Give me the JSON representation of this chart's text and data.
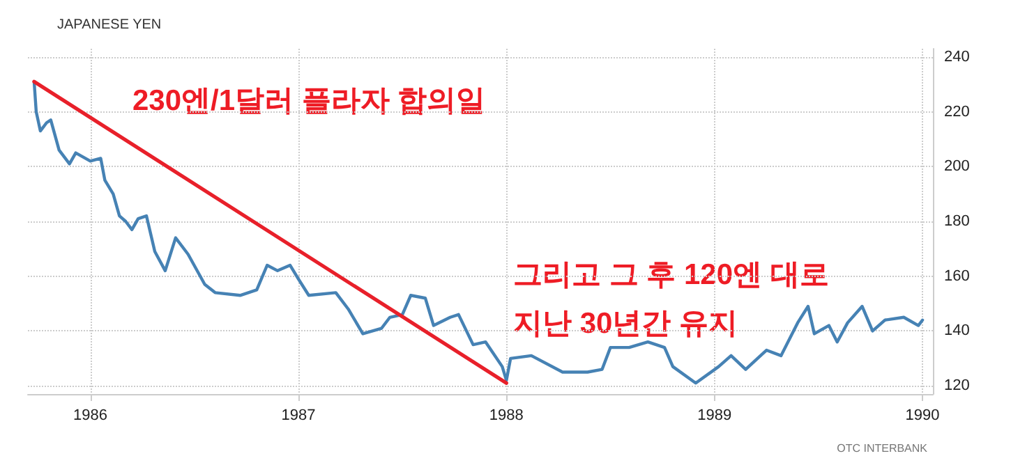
{
  "chart_data": {
    "type": "line",
    "title": "JAPANESE YEN",
    "annotations": [
      "230엔/1달러 플라자 합의일",
      "그리고 그 후 120엔 대로",
      "지난 30년간 유지",
      "OTC INTERBANK"
    ],
    "xlim": [
      1985.7,
      1990.05
    ],
    "xticks": [
      1986,
      1987,
      1988,
      1989,
      1990
    ],
    "ylim": [
      117,
      243
    ],
    "yticks": [
      120,
      140,
      160,
      180,
      200,
      220,
      240
    ],
    "grid": true,
    "marker": "none",
    "line_style": "solid",
    "series": [
      {
        "color": "#4682b4",
        "x": [
          1985.73,
          1985.74,
          1985.76,
          1985.79,
          1985.81,
          1985.85,
          1985.9,
          1985.93,
          1986.0,
          1986.05,
          1986.07,
          1986.11,
          1986.14,
          1986.17,
          1986.2,
          1986.23,
          1986.27,
          1986.31,
          1986.36,
          1986.41,
          1986.47,
          1986.55,
          1986.6,
          1986.72,
          1986.8,
          1986.85,
          1986.9,
          1986.96,
          1987.0,
          1987.05,
          1987.18,
          1987.24,
          1987.31,
          1987.4,
          1987.44,
          1987.5,
          1987.54,
          1987.61,
          1987.65,
          1987.73,
          1987.77,
          1987.84,
          1987.9,
          1987.98,
          1988.0,
          1988.02,
          1988.12,
          1988.27,
          1988.39,
          1988.46,
          1988.5,
          1988.59,
          1988.68,
          1988.76,
          1988.8,
          1988.91,
          1989.02,
          1989.08,
          1989.15,
          1989.25,
          1989.32,
          1989.4,
          1989.45,
          1989.48,
          1989.55,
          1989.59,
          1989.64,
          1989.71,
          1989.76,
          1989.82,
          1989.91,
          1989.98,
          1990.0
        ],
        "values": [
          231,
          220,
          213,
          216,
          217,
          206,
          201,
          205,
          202,
          203,
          195,
          190,
          182,
          180,
          177,
          181,
          182,
          169,
          162,
          174,
          168,
          157,
          154,
          153,
          155,
          164,
          162,
          164,
          159,
          153,
          154,
          148,
          139,
          141,
          145,
          146,
          153,
          152,
          142,
          145,
          146,
          135,
          136,
          127,
          122,
          130,
          131,
          125,
          125,
          126,
          134,
          134,
          136,
          134,
          127,
          121,
          127,
          131,
          126,
          133,
          131,
          143,
          149,
          139,
          142,
          136,
          143,
          149,
          140,
          144,
          145,
          142,
          144
        ]
      },
      {
        "color": "#e8202a",
        "x": [
          1985.73,
          1988.0
        ],
        "values": [
          231,
          121
        ]
      }
    ]
  }
}
